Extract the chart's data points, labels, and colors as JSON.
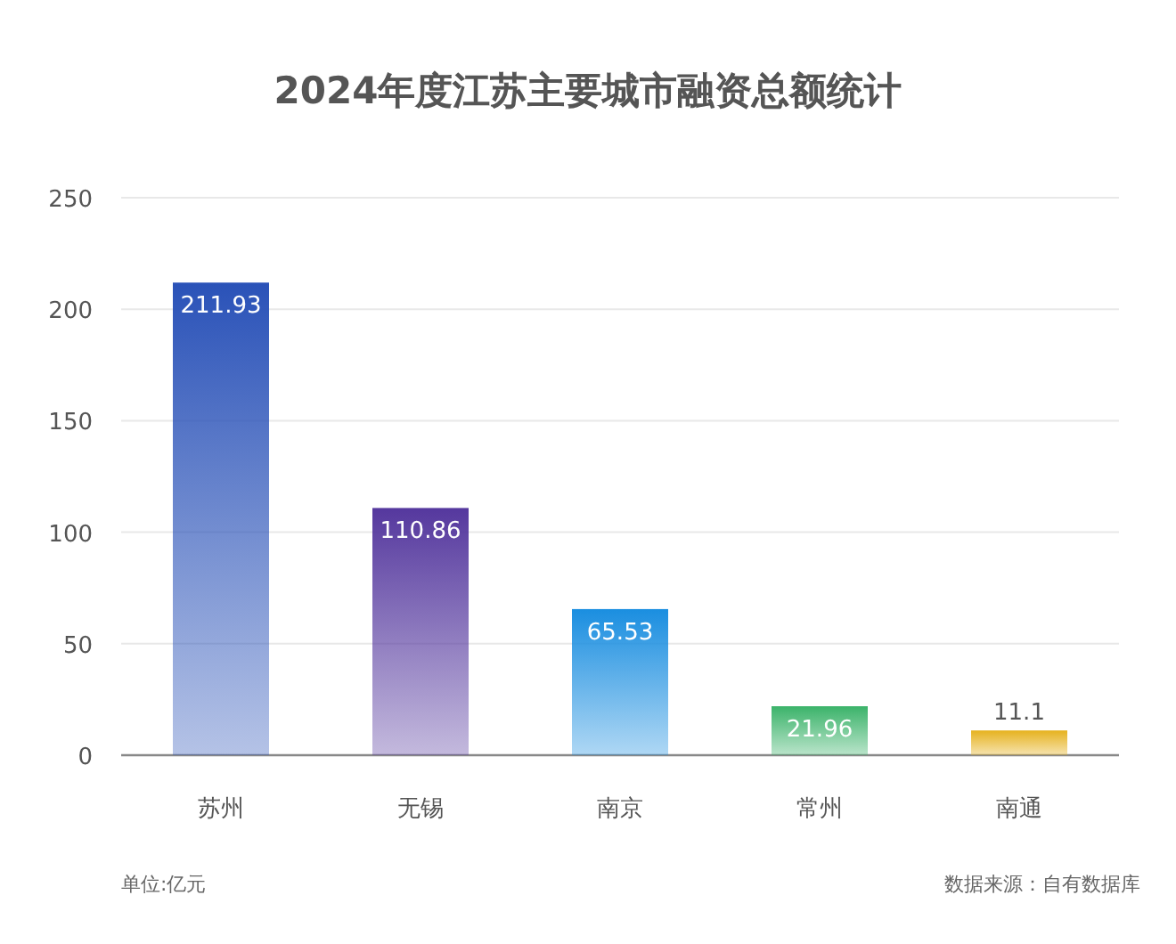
{
  "chart_data": {
    "type": "bar",
    "title": "2024年度江苏主要城市融资总额统计",
    "categories": [
      "苏州",
      "无锡",
      "南京",
      "常州",
      "南通"
    ],
    "values": [
      211.93,
      110.86,
      65.53,
      21.96,
      11.1
    ],
    "colors": [
      "#2a52b8",
      "#55389e",
      "#1a8ee0",
      "#3bb36a",
      "#e6b21e"
    ],
    "ylim": [
      0,
      250
    ],
    "yticks": [
      0,
      50,
      100,
      150,
      200,
      250
    ],
    "grid": "y",
    "data_labels": true,
    "annotations": [
      "单位:亿元",
      "数据来源：自有数据库"
    ]
  }
}
